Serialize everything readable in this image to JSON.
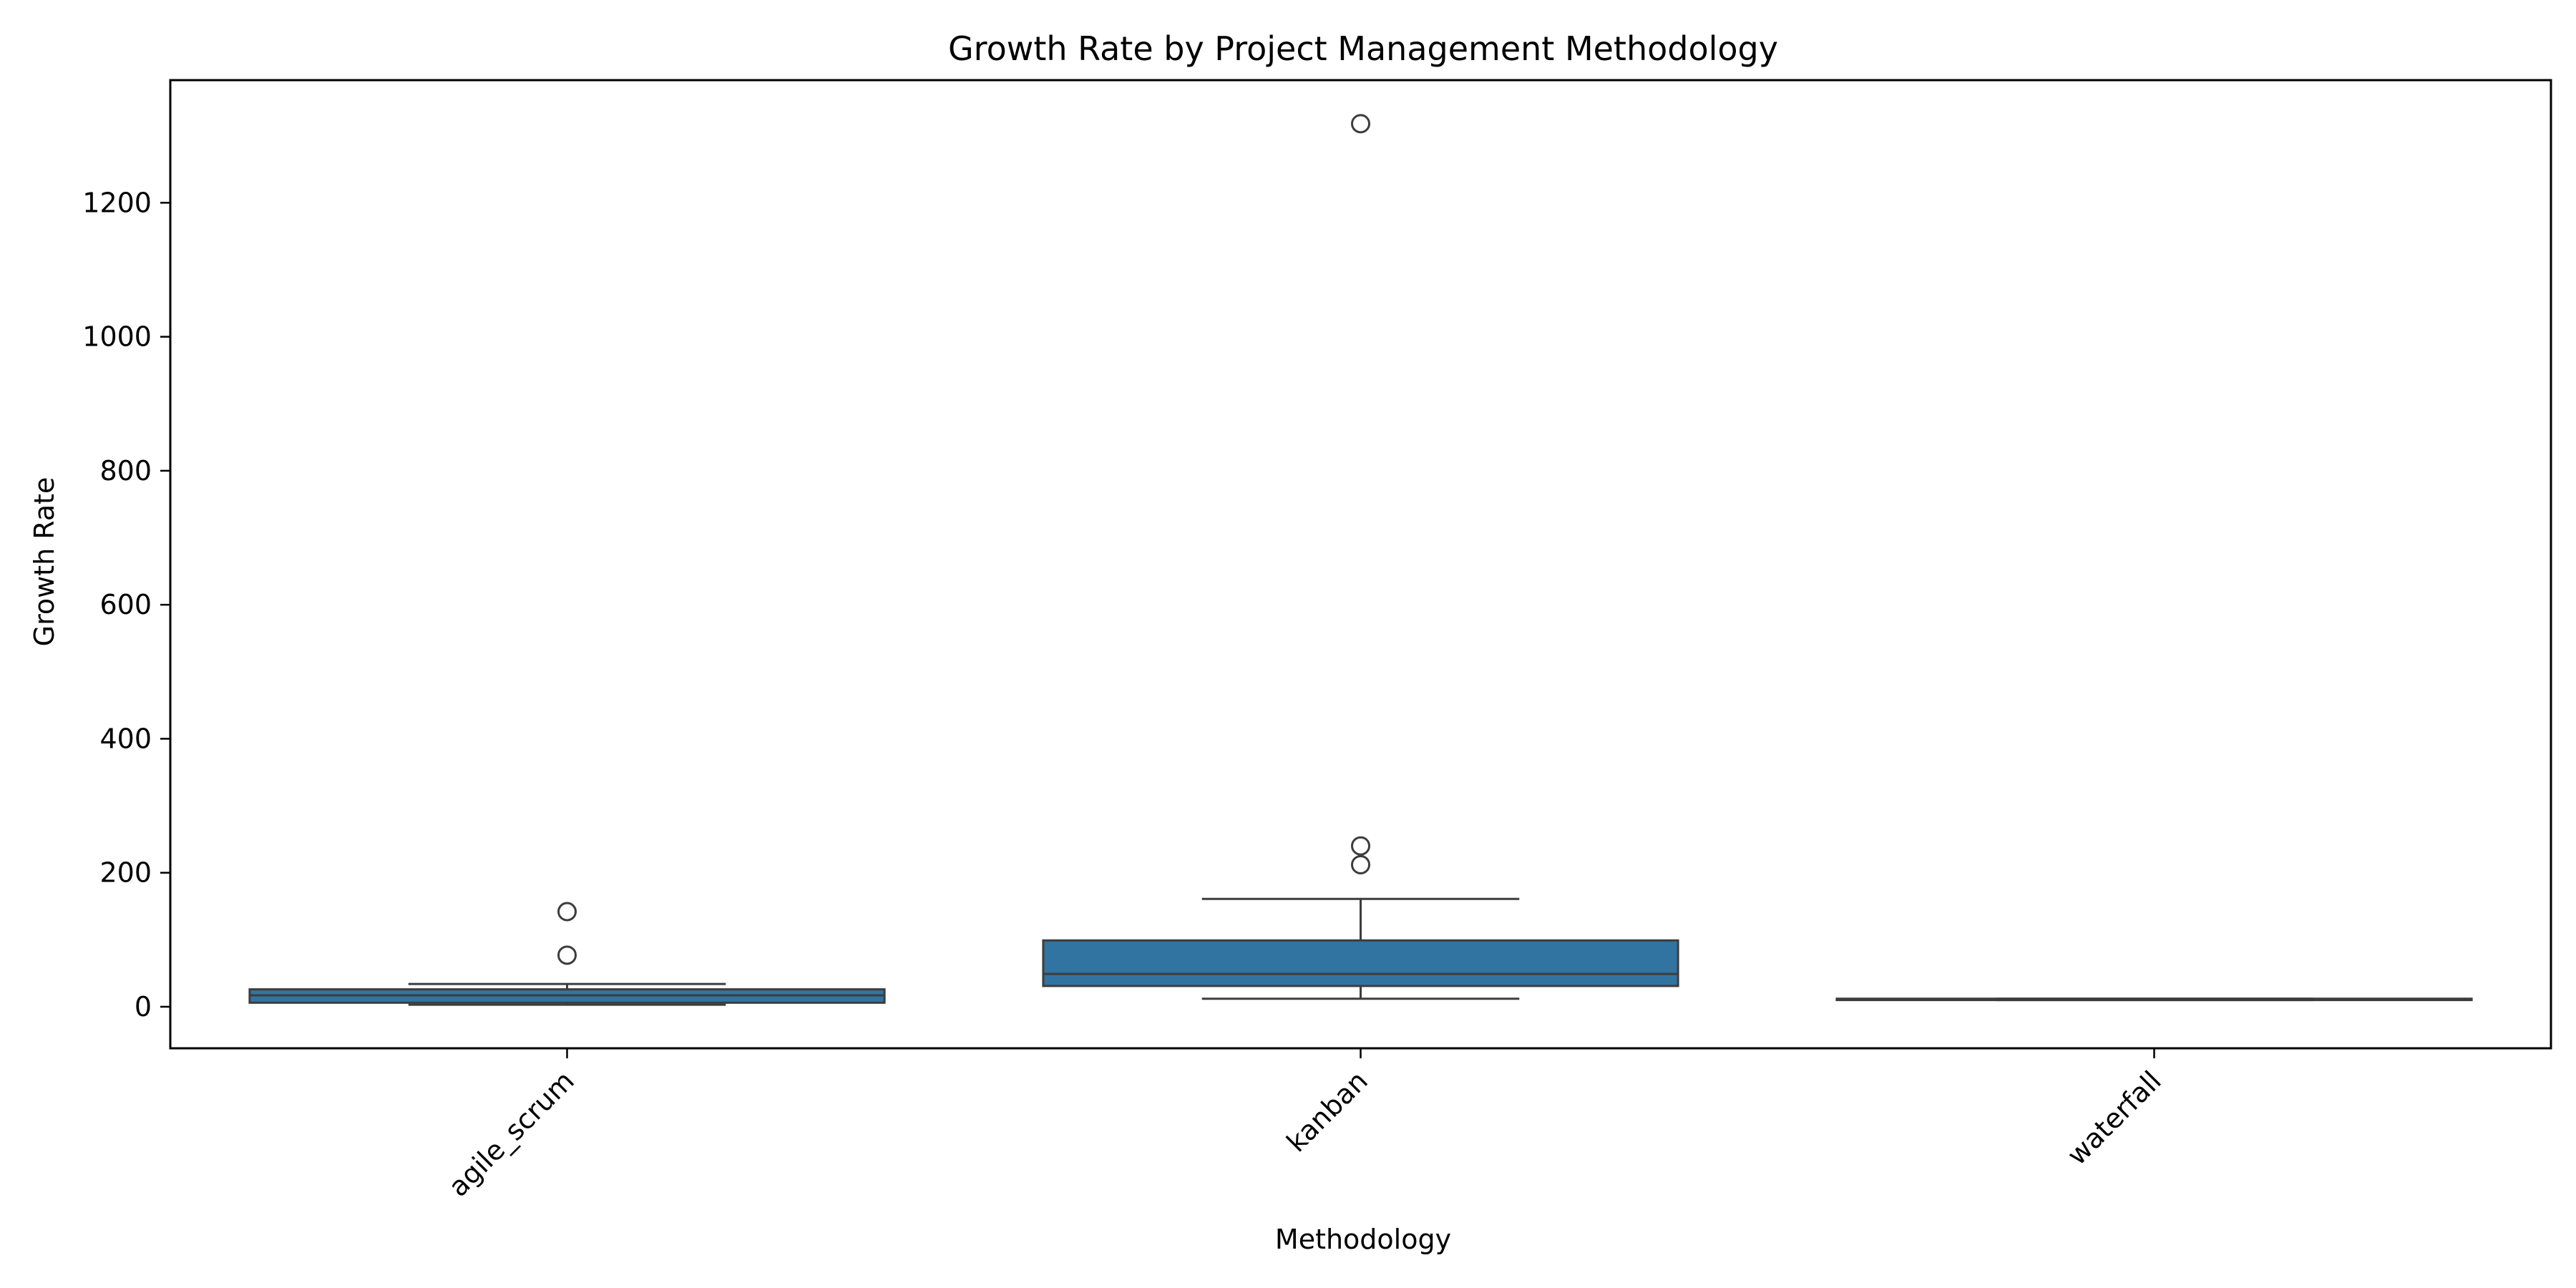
{
  "chart_data": {
    "type": "box",
    "title": "Growth Rate by Project Management Methodology",
    "xlabel": "Methodology",
    "ylabel": "Growth Rate",
    "ylim": [
      -62,
      1383
    ],
    "yticks": [
      0,
      200,
      400,
      600,
      800,
      1000,
      1200
    ],
    "categories": [
      "agile_scrum",
      "kanban",
      "waterfall"
    ],
    "box_color": "#3274a1",
    "edge_color": "#3d3d3d",
    "grid": false,
    "boxes": [
      {
        "category": "agile_scrum",
        "whisker_low": 3,
        "q1": 6,
        "median": 17,
        "q3": 26,
        "whisker_high": 34,
        "outliers": [
          77,
          142
        ]
      },
      {
        "category": "kanban",
        "whisker_low": 12,
        "q1": 31,
        "median": 49,
        "q3": 99,
        "whisker_high": 161,
        "outliers": [
          212,
          240,
          1318
        ]
      },
      {
        "category": "waterfall",
        "whisker_low": 10,
        "q1": 10,
        "median": 11,
        "q3": 12,
        "whisker_high": 12,
        "outliers": []
      }
    ]
  }
}
